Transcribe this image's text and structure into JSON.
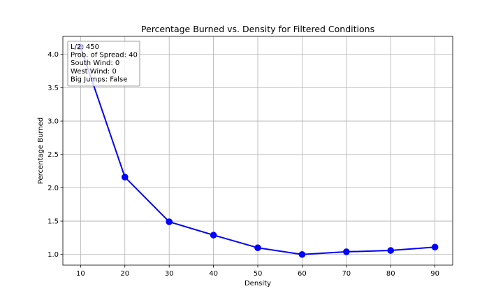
{
  "chart_data": {
    "type": "line",
    "title": "Percentage Burned vs. Density for Filtered Conditions",
    "xlabel": "Density",
    "ylabel": "Percentage Burned",
    "x": [
      10,
      20,
      30,
      40,
      50,
      60,
      70,
      80,
      90
    ],
    "series": [
      {
        "values": [
          4.11,
          2.16,
          1.49,
          1.29,
          1.1,
          1.0,
          1.04,
          1.06,
          1.11
        ]
      }
    ],
    "xlim": [
      6,
      94
    ],
    "ylim": [
      0.84,
      4.27
    ],
    "xticks": [
      10,
      20,
      30,
      40,
      50,
      60,
      70,
      80,
      90
    ],
    "yticks": [
      "1.0",
      "1.5",
      "2.0",
      "2.5",
      "3.0",
      "3.5",
      "4.0"
    ],
    "grid": true,
    "line_color": "#0000ff",
    "annotation": {
      "location": "top-left",
      "lines": [
        "L/2: 450",
        "Prob. of Spread: 40",
        "South Wind: 0",
        "West Wind: 0",
        "Big Jumps: False"
      ]
    }
  }
}
